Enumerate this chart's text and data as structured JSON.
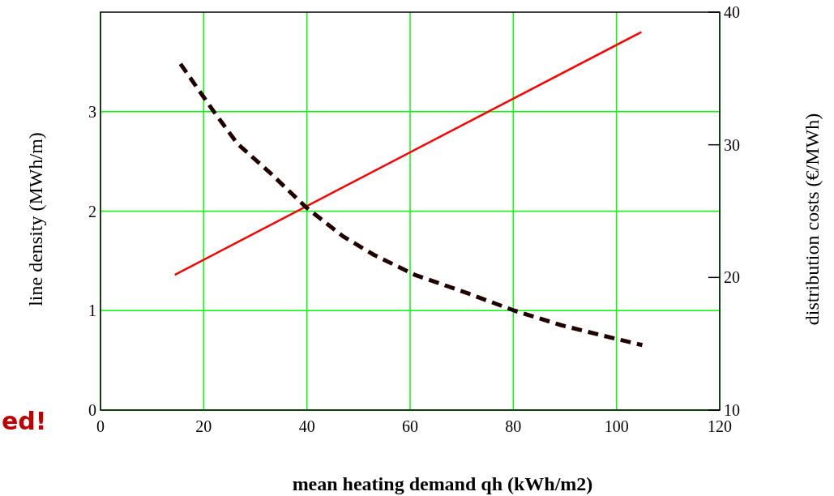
{
  "chart_data": {
    "type": "line",
    "xlabel": "mean heating demand qh (kWh/m2)",
    "ylabel": "line density (MWh/m)",
    "y2label": "distribution costs (€/MWh)",
    "xlim": [
      0,
      120
    ],
    "xticks": [
      0,
      20,
      40,
      60,
      80,
      100,
      120
    ],
    "ylim": [
      0,
      4
    ],
    "yticks": [
      0,
      1,
      2,
      3
    ],
    "y2lim": [
      10,
      40
    ],
    "y2ticks": [
      10,
      20,
      30,
      40
    ],
    "grid": true,
    "annotations": [
      "ed!"
    ],
    "series": [
      {
        "color": "#ff0000",
        "line_style": "solid",
        "x": [
          14.4,
          104.8
        ],
        "values": [
          1.36,
          3.8
        ]
      },
      {
        "color": "#200000",
        "line_style": "dashed",
        "axis": "y2",
        "x": [
          15.5,
          21.6,
          26.5,
          33.1,
          39.8,
          47,
          53,
          60.9,
          71.2,
          80.2,
          89.3,
          99.6,
          105
        ],
        "values": [
          36.1,
          32.7,
          30.1,
          27.8,
          25.3,
          23.1,
          21.7,
          20.2,
          18.8,
          17.5,
          16.4,
          15.4,
          14.9
        ]
      }
    ]
  }
}
